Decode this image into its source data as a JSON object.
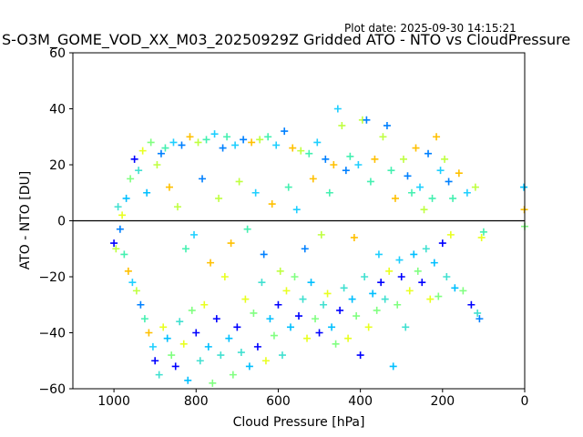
{
  "plot_date": "Plot date: 2025-09-30 14:15:21",
  "chart_data": {
    "type": "scatter",
    "title": "S-O3M_GOME_VOD_XX_M03_20250929Z Gridded ATO - NTO vs CloudPressure",
    "xlabel": "Cloud Pressure [hPa]",
    "ylabel": "ATO - NTO [DU]",
    "xlim": [
      1100,
      0
    ],
    "ylim": [
      -60,
      60
    ],
    "x_inverted": true,
    "xticks": [
      1000,
      800,
      600,
      400,
      200,
      0
    ],
    "yticks": [
      -60,
      -40,
      -20,
      0,
      20,
      40,
      60
    ],
    "reference_line_y": 0,
    "marker": "+",
    "colors": [
      "#0000ff",
      "#0080ff",
      "#00bfff",
      "#1ecfff",
      "#40e0d0",
      "#44f0b0",
      "#80ff80",
      "#bfff40",
      "#e8ff20",
      "#ffc000"
    ],
    "grid": false,
    "point_count_note": "dense cloud of points between ~990 and ~100 hPa",
    "points": [
      [
        1000,
        -8
      ],
      [
        995,
        -10
      ],
      [
        990,
        5
      ],
      [
        985,
        -3
      ],
      [
        980,
        2
      ],
      [
        975,
        -12
      ],
      [
        970,
        8
      ],
      [
        965,
        -18
      ],
      [
        960,
        15
      ],
      [
        955,
        -22
      ],
      [
        950,
        22
      ],
      [
        945,
        -25
      ],
      [
        940,
        18
      ],
      [
        935,
        -30
      ],
      [
        930,
        25
      ],
      [
        925,
        -35
      ],
      [
        920,
        10
      ],
      [
        915,
        -40
      ],
      [
        910,
        28
      ],
      [
        905,
        -45
      ],
      [
        900,
        -50
      ],
      [
        895,
        20
      ],
      [
        890,
        -55
      ],
      [
        885,
        24
      ],
      [
        880,
        -38
      ],
      [
        875,
        26
      ],
      [
        870,
        -42
      ],
      [
        865,
        12
      ],
      [
        860,
        -48
      ],
      [
        855,
        28
      ],
      [
        850,
        -52
      ],
      [
        845,
        5
      ],
      [
        840,
        -36
      ],
      [
        835,
        27
      ],
      [
        830,
        -44
      ],
      [
        825,
        -10
      ],
      [
        820,
        -57
      ],
      [
        815,
        30
      ],
      [
        810,
        -32
      ],
      [
        805,
        -5
      ],
      [
        800,
        -40
      ],
      [
        795,
        28
      ],
      [
        790,
        -50
      ],
      [
        785,
        15
      ],
      [
        780,
        -30
      ],
      [
        775,
        29
      ],
      [
        770,
        -45
      ],
      [
        765,
        -15
      ],
      [
        760,
        -58
      ],
      [
        755,
        31
      ],
      [
        750,
        -35
      ],
      [
        745,
        8
      ],
      [
        740,
        -48
      ],
      [
        735,
        26
      ],
      [
        730,
        -20
      ],
      [
        725,
        30
      ],
      [
        720,
        -42
      ],
      [
        715,
        -8
      ],
      [
        710,
        -55
      ],
      [
        705,
        27
      ],
      [
        700,
        -38
      ],
      [
        695,
        14
      ],
      [
        690,
        -47
      ],
      [
        685,
        29
      ],
      [
        680,
        -28
      ],
      [
        675,
        -3
      ],
      [
        670,
        -52
      ],
      [
        665,
        28
      ],
      [
        660,
        -33
      ],
      [
        655,
        10
      ],
      [
        650,
        -45
      ],
      [
        645,
        29
      ],
      [
        640,
        -22
      ],
      [
        635,
        -12
      ],
      [
        630,
        -50
      ],
      [
        625,
        30
      ],
      [
        620,
        -35
      ],
      [
        615,
        6
      ],
      [
        610,
        -41
      ],
      [
        605,
        27
      ],
      [
        600,
        -30
      ],
      [
        595,
        -18
      ],
      [
        590,
        -48
      ],
      [
        585,
        32
      ],
      [
        580,
        -25
      ],
      [
        575,
        12
      ],
      [
        570,
        -38
      ],
      [
        565,
        26
      ],
      [
        560,
        -20
      ],
      [
        555,
        4
      ],
      [
        550,
        -34
      ],
      [
        545,
        25
      ],
      [
        540,
        -28
      ],
      [
        535,
        -10
      ],
      [
        530,
        -42
      ],
      [
        525,
        24
      ],
      [
        520,
        -22
      ],
      [
        515,
        15
      ],
      [
        510,
        -35
      ],
      [
        505,
        28
      ],
      [
        500,
        -40
      ],
      [
        495,
        -5
      ],
      [
        490,
        -30
      ],
      [
        485,
        22
      ],
      [
        480,
        -26
      ],
      [
        475,
        10
      ],
      [
        470,
        -38
      ],
      [
        465,
        20
      ],
      [
        460,
        -44
      ],
      [
        455,
        40
      ],
      [
        450,
        -32
      ],
      [
        445,
        34
      ],
      [
        440,
        -24
      ],
      [
        435,
        18
      ],
      [
        430,
        -42
      ],
      [
        425,
        23
      ],
      [
        420,
        -28
      ],
      [
        415,
        -6
      ],
      [
        410,
        -34
      ],
      [
        405,
        20
      ],
      [
        400,
        -48
      ],
      [
        395,
        36
      ],
      [
        390,
        -20
      ],
      [
        385,
        36
      ],
      [
        380,
        -38
      ],
      [
        375,
        14
      ],
      [
        370,
        -26
      ],
      [
        365,
        22
      ],
      [
        360,
        -32
      ],
      [
        355,
        -12
      ],
      [
        350,
        -22
      ],
      [
        345,
        30
      ],
      [
        340,
        -28
      ],
      [
        335,
        34
      ],
      [
        330,
        -18
      ],
      [
        325,
        18
      ],
      [
        320,
        -52
      ],
      [
        315,
        8
      ],
      [
        310,
        -30
      ],
      [
        305,
        -14
      ],
      [
        300,
        -20
      ],
      [
        295,
        22
      ],
      [
        290,
        -38
      ],
      [
        285,
        16
      ],
      [
        280,
        -25
      ],
      [
        275,
        10
      ],
      [
        270,
        -12
      ],
      [
        265,
        26
      ],
      [
        260,
        -18
      ],
      [
        255,
        12
      ],
      [
        250,
        -22
      ],
      [
        245,
        4
      ],
      [
        240,
        -10
      ],
      [
        235,
        24
      ],
      [
        230,
        -28
      ],
      [
        225,
        8
      ],
      [
        220,
        -15
      ],
      [
        215,
        30
      ],
      [
        210,
        -27
      ],
      [
        205,
        18
      ],
      [
        200,
        -8
      ],
      [
        195,
        22
      ],
      [
        190,
        -20
      ],
      [
        185,
        14
      ],
      [
        180,
        -5
      ],
      [
        175,
        8
      ],
      [
        170,
        -24
      ],
      [
        160,
        17
      ],
      [
        150,
        -25
      ],
      [
        140,
        10
      ],
      [
        130,
        -30
      ],
      [
        120,
        12
      ],
      [
        115,
        -33
      ],
      [
        110,
        -35
      ],
      [
        105,
        -6
      ],
      [
        100,
        -4
      ],
      [
        2,
        12
      ],
      [
        1,
        4
      ],
      [
        0,
        -2
      ]
    ]
  }
}
